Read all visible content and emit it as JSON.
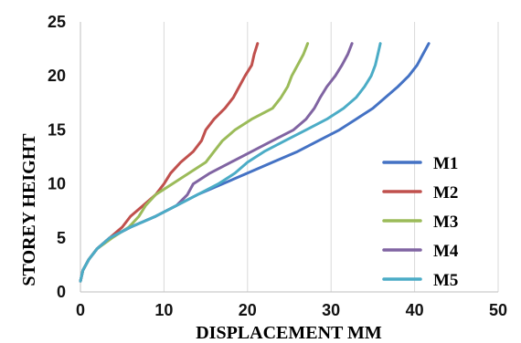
{
  "chart_data": {
    "type": "line",
    "xlabel": "DISPLACEMENT MM",
    "ylabel": "STOREY HEIGHT",
    "xlim": [
      0,
      50
    ],
    "ylim": [
      0,
      25
    ],
    "xticks": [
      "0",
      "10",
      "20",
      "30",
      "40",
      "50"
    ],
    "yticks": [
      "0",
      "5",
      "10",
      "15",
      "20",
      "25"
    ],
    "grid": "vertical",
    "legend_position": "right",
    "series": [
      {
        "name": "M1",
        "color": "#4472C4",
        "points": [
          [
            0,
            1
          ],
          [
            0.3,
            2
          ],
          [
            1,
            3
          ],
          [
            2,
            4
          ],
          [
            3.5,
            5
          ],
          [
            6,
            6
          ],
          [
            9,
            7
          ],
          [
            11.5,
            8
          ],
          [
            14,
            9
          ],
          [
            17,
            10
          ],
          [
            20,
            11
          ],
          [
            23,
            12
          ],
          [
            26,
            13
          ],
          [
            28.5,
            14
          ],
          [
            31,
            15
          ],
          [
            33,
            16
          ],
          [
            35,
            17
          ],
          [
            36.5,
            18
          ],
          [
            38,
            19
          ],
          [
            39.3,
            20
          ],
          [
            40.3,
            21
          ],
          [
            41,
            22
          ],
          [
            41.7,
            23
          ]
        ]
      },
      {
        "name": "M2",
        "color": "#C0504D",
        "points": [
          [
            0,
            1
          ],
          [
            0.3,
            2
          ],
          [
            1,
            3
          ],
          [
            2,
            4
          ],
          [
            3.5,
            5
          ],
          [
            5,
            6
          ],
          [
            6,
            7
          ],
          [
            7.5,
            8
          ],
          [
            9,
            9
          ],
          [
            10,
            10
          ],
          [
            10.8,
            11
          ],
          [
            12,
            12
          ],
          [
            13.5,
            13
          ],
          [
            14.5,
            14
          ],
          [
            15,
            15
          ],
          [
            16,
            16
          ],
          [
            17.3,
            17
          ],
          [
            18.3,
            18
          ],
          [
            19,
            19
          ],
          [
            19.7,
            20
          ],
          [
            20.5,
            21
          ],
          [
            20.8,
            22
          ],
          [
            21.2,
            23
          ]
        ]
      },
      {
        "name": "M3",
        "color": "#9BBB59",
        "points": [
          [
            0,
            1
          ],
          [
            0.3,
            2
          ],
          [
            1,
            3
          ],
          [
            2,
            4
          ],
          [
            3.8,
            5
          ],
          [
            5.8,
            6
          ],
          [
            7,
            7
          ],
          [
            7.8,
            8
          ],
          [
            9,
            9
          ],
          [
            11,
            10
          ],
          [
            13,
            11
          ],
          [
            15,
            12
          ],
          [
            16,
            13
          ],
          [
            17,
            14
          ],
          [
            18.5,
            15
          ],
          [
            20.5,
            16
          ],
          [
            23,
            17
          ],
          [
            24,
            18
          ],
          [
            24.8,
            19
          ],
          [
            25.3,
            20
          ],
          [
            26,
            21
          ],
          [
            26.7,
            22
          ],
          [
            27.2,
            23
          ]
        ]
      },
      {
        "name": "M4",
        "color": "#8064A2",
        "points": [
          [
            0,
            1
          ],
          [
            0.3,
            2
          ],
          [
            1,
            3
          ],
          [
            2,
            4
          ],
          [
            3.5,
            5
          ],
          [
            6,
            6
          ],
          [
            9,
            7
          ],
          [
            11.5,
            8
          ],
          [
            12.8,
            9
          ],
          [
            13.5,
            10
          ],
          [
            15.5,
            11
          ],
          [
            18,
            12
          ],
          [
            20.5,
            13
          ],
          [
            23,
            14
          ],
          [
            25.5,
            15
          ],
          [
            27,
            16
          ],
          [
            28,
            17
          ],
          [
            28.7,
            18
          ],
          [
            29.5,
            19
          ],
          [
            30.5,
            20
          ],
          [
            31.3,
            21
          ],
          [
            32,
            22
          ],
          [
            32.5,
            23
          ]
        ]
      },
      {
        "name": "M5",
        "color": "#4BACC6",
        "points": [
          [
            0,
            1
          ],
          [
            0.3,
            2
          ],
          [
            1,
            3
          ],
          [
            2,
            4
          ],
          [
            3.5,
            5
          ],
          [
            6,
            6
          ],
          [
            9,
            7
          ],
          [
            11.5,
            8
          ],
          [
            14,
            9
          ],
          [
            16.5,
            10
          ],
          [
            18.5,
            11
          ],
          [
            20,
            12
          ],
          [
            22,
            13
          ],
          [
            24.5,
            14
          ],
          [
            27,
            15
          ],
          [
            29.5,
            16
          ],
          [
            31.5,
            17
          ],
          [
            33,
            18
          ],
          [
            34,
            19
          ],
          [
            34.8,
            20
          ],
          [
            35.3,
            21
          ],
          [
            35.6,
            22
          ],
          [
            35.9,
            23
          ]
        ]
      }
    ]
  }
}
